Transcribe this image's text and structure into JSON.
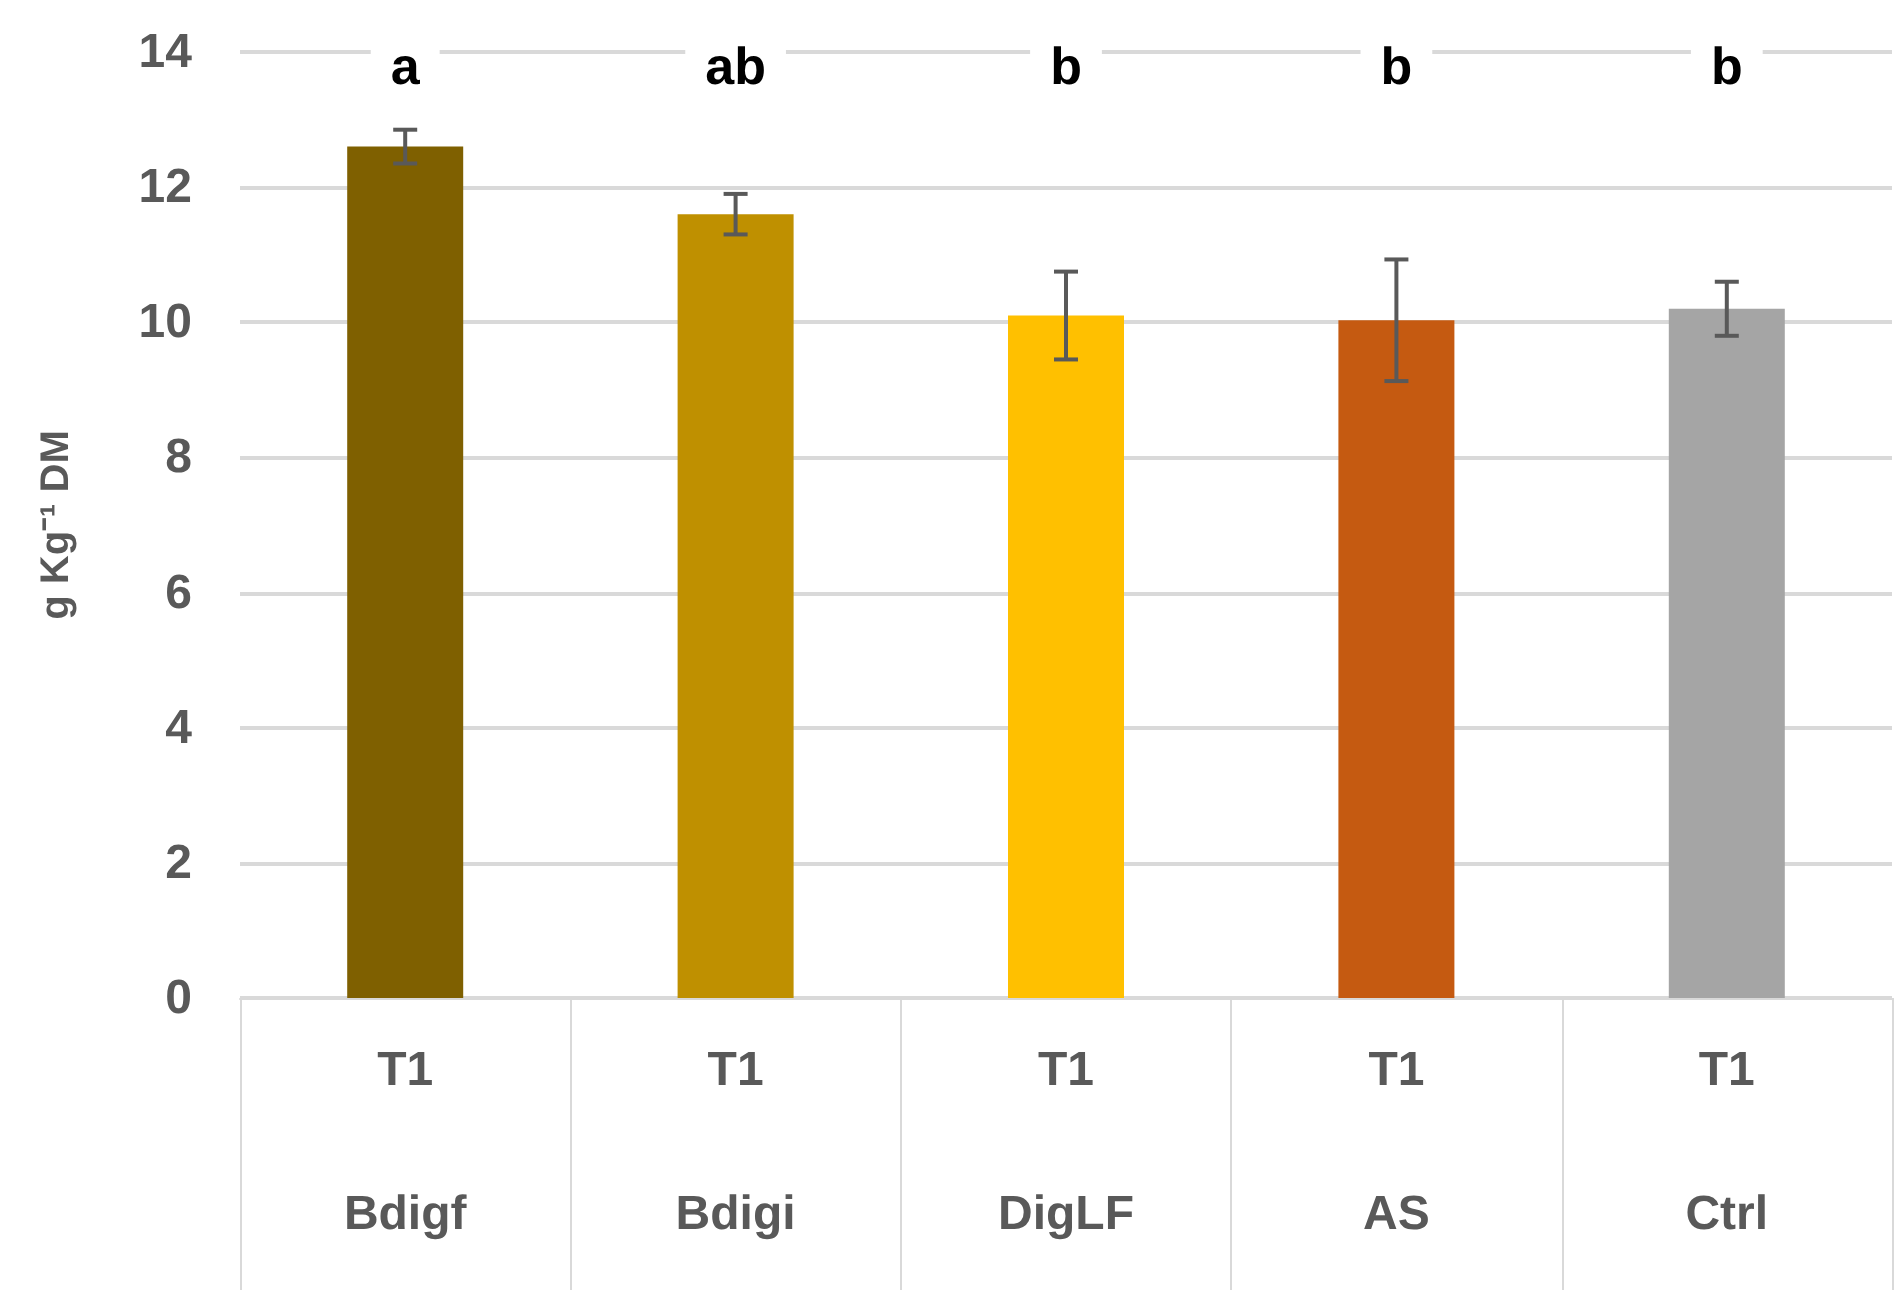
{
  "chart_data": {
    "type": "bar",
    "ylabel": "g Kg⁻¹ DM",
    "categories": [
      "T1\nBdigf",
      "T1\nBdigi",
      "T1\nDigLF",
      "T1\nAS",
      "T1\nCtrl"
    ],
    "values": [
      12.6,
      11.6,
      10.1,
      10.03,
      10.2
    ],
    "errors": [
      0.25,
      0.3,
      0.65,
      0.9,
      0.4
    ],
    "colors": [
      "#7f6000",
      "#bf9000",
      "#ffc000",
      "#c55a11",
      "#a5a5a5"
    ],
    "ylim": [
      0,
      14
    ],
    "yticks": [
      0,
      2,
      4,
      6,
      8,
      10,
      12,
      14
    ],
    "grid": "y",
    "annotations": [
      "a",
      "ab",
      "b",
      "b",
      "b"
    ]
  }
}
